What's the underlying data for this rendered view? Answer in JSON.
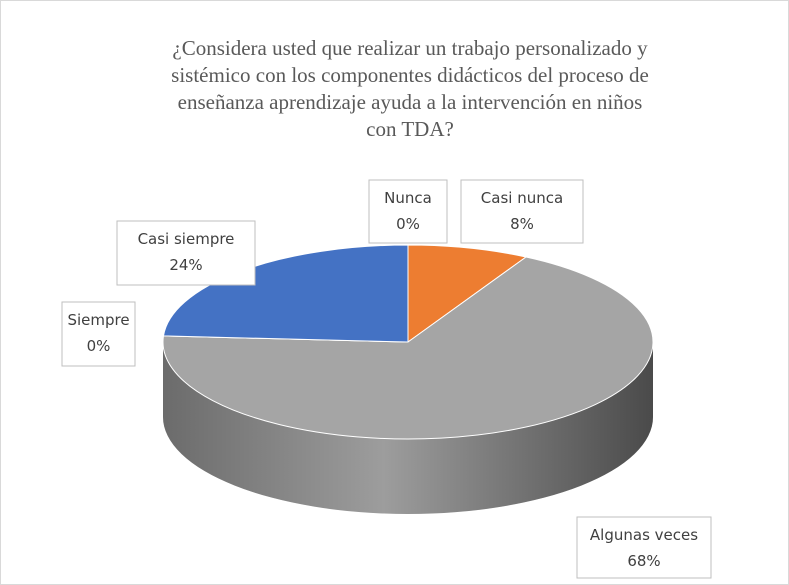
{
  "chart_data": {
    "type": "pie3d",
    "title": [
      "¿Considera usted que realizar un trabajo personalizado y",
      "sistémico con los componentes didácticos del proceso de",
      "enseñanza aprendizaje ayuda a la intervención en niños",
      "con TDA?"
    ],
    "categories": [
      "Nunca",
      "Casi nunca",
      "Algunas veces",
      "Siempre",
      "Casi siempre"
    ],
    "values": [
      0,
      8,
      68,
      0,
      24
    ],
    "value_labels": [
      "0%",
      "8%",
      "68%",
      "0%",
      "24%"
    ],
    "colors": [
      "#ffc000",
      "#ed7d31",
      "#a5a5a5",
      "#5b9bd5",
      "#4472c4"
    ]
  }
}
